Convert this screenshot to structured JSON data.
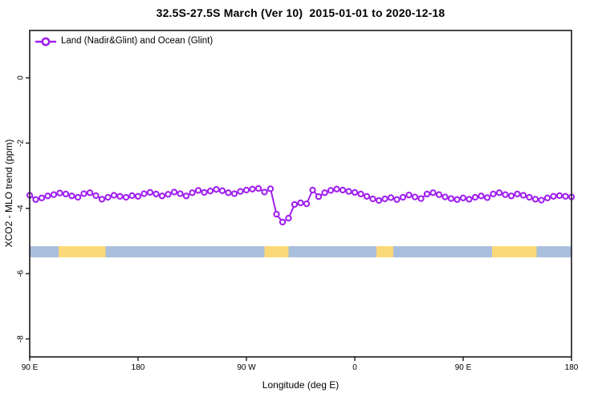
{
  "title": "32.5S-27.5S March (Ver 10)  2015-01-01 to 2020-12-18",
  "legend": {
    "label": "Land (Nadir&Glint) and Ocean (Glint)"
  },
  "colors": {
    "series": "#A020F0",
    "marker_fill": "#ffffff",
    "ocean_band": "#a9bedc",
    "land_band": "#fbd877",
    "axis": "#1a1a1a",
    "background": "#ffffff"
  },
  "chart_data": {
    "type": "line",
    "title": "32.5S-27.5S March (Ver 10)  2015-01-01 to 2020-12-18",
    "xlabel": "Longitude (deg E)",
    "ylabel": "XCO2 - MLO trend (ppm)",
    "xlim": [
      90,
      540
    ],
    "ylim": [
      -8.55,
      1.45
    ],
    "grid": false,
    "legend_position": "top-left-inside",
    "x_ticks": [
      {
        "value": 90,
        "label": "90 E"
      },
      {
        "value": 180,
        "label": "180"
      },
      {
        "value": 270,
        "label": "90 W"
      },
      {
        "value": 360,
        "label": "0"
      },
      {
        "value": 450,
        "label": "90 E"
      },
      {
        "value": 540,
        "label": "180"
      }
    ],
    "y_ticks": [
      {
        "value": 0,
        "label": "0"
      },
      {
        "value": -2,
        "label": "-2"
      },
      {
        "value": -4,
        "label": "-4"
      },
      {
        "value": -6,
        "label": "-6"
      },
      {
        "value": -8,
        "label": "-8"
      }
    ],
    "series": [
      {
        "name": "Land (Nadir&Glint) and Ocean (Glint)",
        "color": "#A020F0",
        "marker": "open-circle",
        "x": [
          90,
          95,
          100,
          105,
          110,
          115,
          120,
          125,
          130,
          135,
          140,
          145,
          150,
          155,
          160,
          165,
          170,
          175,
          180,
          185,
          190,
          195,
          200,
          205,
          210,
          215,
          220,
          225,
          230,
          235,
          240,
          245,
          250,
          255,
          260,
          265,
          270,
          275,
          280,
          285,
          290,
          295,
          300,
          305,
          310,
          315,
          320,
          325,
          330,
          335,
          340,
          345,
          350,
          355,
          360,
          365,
          370,
          375,
          380,
          385,
          390,
          395,
          400,
          405,
          410,
          415,
          420,
          425,
          430,
          435,
          440,
          445,
          450,
          455,
          460,
          465,
          470,
          475,
          480,
          485,
          490,
          495,
          500,
          505,
          510,
          515,
          520,
          525,
          530,
          535,
          540
        ],
        "y": [
          -3.6,
          -3.73,
          -3.68,
          -3.62,
          -3.58,
          -3.53,
          -3.56,
          -3.62,
          -3.66,
          -3.55,
          -3.52,
          -3.61,
          -3.72,
          -3.66,
          -3.6,
          -3.63,
          -3.66,
          -3.61,
          -3.63,
          -3.55,
          -3.51,
          -3.56,
          -3.62,
          -3.57,
          -3.5,
          -3.55,
          -3.62,
          -3.52,
          -3.45,
          -3.51,
          -3.47,
          -3.42,
          -3.46,
          -3.52,
          -3.55,
          -3.48,
          -3.44,
          -3.41,
          -3.39,
          -3.5,
          -3.4,
          -4.18,
          -4.42,
          -4.3,
          -3.88,
          -3.83,
          -3.86,
          -3.44,
          -3.64,
          -3.52,
          -3.45,
          -3.41,
          -3.44,
          -3.48,
          -3.51,
          -3.56,
          -3.63,
          -3.71,
          -3.76,
          -3.71,
          -3.67,
          -3.73,
          -3.66,
          -3.59,
          -3.65,
          -3.7,
          -3.56,
          -3.52,
          -3.58,
          -3.65,
          -3.7,
          -3.73,
          -3.68,
          -3.72,
          -3.66,
          -3.62,
          -3.67,
          -3.56,
          -3.52,
          -3.58,
          -3.62,
          -3.56,
          -3.6,
          -3.66,
          -3.72,
          -3.75,
          -3.68,
          -3.63,
          -3.61,
          -3.63,
          -3.65
        ]
      }
    ],
    "land_ocean_band": {
      "y_range": [
        -5.16,
        -5.5
      ],
      "ocean_color": "#a9bedc",
      "land_color": "#fbd877",
      "segments": [
        {
          "type": "ocean",
          "from": 90,
          "to": 114
        },
        {
          "type": "land",
          "from": 114,
          "to": 153
        },
        {
          "type": "ocean",
          "from": 153,
          "to": 285
        },
        {
          "type": "land",
          "from": 285,
          "to": 305
        },
        {
          "type": "ocean",
          "from": 305,
          "to": 378
        },
        {
          "type": "land",
          "from": 378,
          "to": 392
        },
        {
          "type": "ocean",
          "from": 392,
          "to": 474
        },
        {
          "type": "land",
          "from": 474,
          "to": 511
        },
        {
          "type": "ocean",
          "from": 511,
          "to": 540
        }
      ]
    }
  }
}
